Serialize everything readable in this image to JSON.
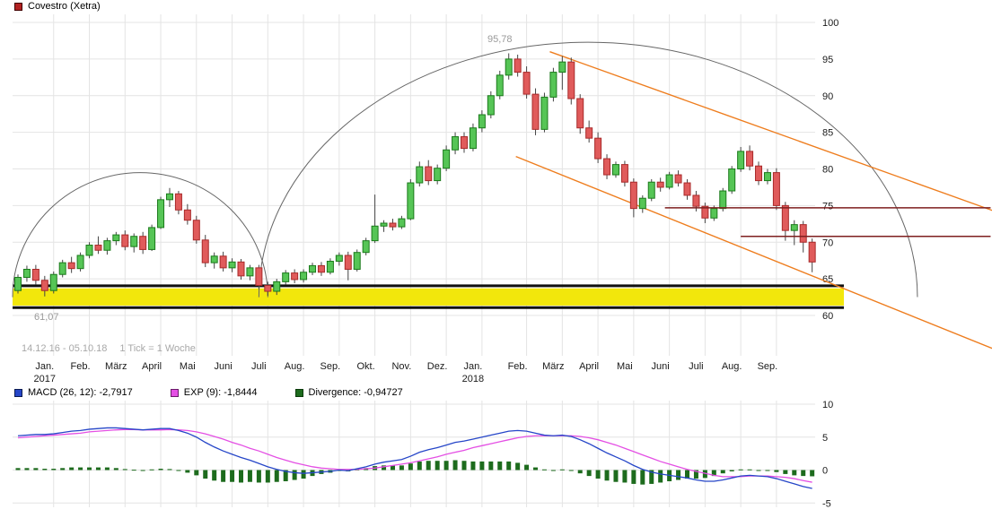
{
  "title": "Covestro (Xetra)",
  "chart_data": [
    {
      "type": "candlestick",
      "title": "Covestro (Xetra)",
      "x_unit": "week",
      "date_range_label": "14.12.16 - 05.10.18",
      "tick_label": "1 Tick = 1 Woche",
      "ylim": [
        54.5,
        101
      ],
      "y_ticks": [
        100,
        95,
        90,
        85,
        80,
        75,
        70,
        65,
        60
      ],
      "months": [
        {
          "label": "Jan.",
          "year": "2017",
          "week": 4
        },
        {
          "label": "Feb.",
          "week": 8
        },
        {
          "label": "März",
          "week": 12
        },
        {
          "label": "April",
          "week": 16
        },
        {
          "label": "Mai",
          "week": 20
        },
        {
          "label": "Juni",
          "week": 24
        },
        {
          "label": "Juli",
          "week": 28
        },
        {
          "label": "Aug.",
          "week": 32
        },
        {
          "label": "Sep.",
          "week": 36
        },
        {
          "label": "Okt.",
          "week": 40
        },
        {
          "label": "Nov.",
          "week": 44
        },
        {
          "label": "Dez.",
          "week": 48
        },
        {
          "label": "Jan.",
          "year": "2018",
          "week": 52
        },
        {
          "label": "Feb.",
          "week": 57
        },
        {
          "label": "März",
          "week": 61
        },
        {
          "label": "April",
          "week": 65
        },
        {
          "label": "Mai",
          "week": 69
        },
        {
          "label": "Juni",
          "week": 73
        },
        {
          "label": "Juli",
          "week": 77
        },
        {
          "label": "Aug.",
          "week": 81
        },
        {
          "label": "Sep.",
          "week": 85
        }
      ],
      "peak": {
        "week": 55,
        "price": 95.78,
        "label": "95,78"
      },
      "support_zone": {
        "band_top": 63.7,
        "band_bottom": 61.35,
        "line_top": 64.05,
        "line_bottom": 61.07,
        "label": "61,07"
      },
      "resistance_lines": [
        {
          "price": 74.7,
          "from_week": 72.5,
          "to_week": 109
        },
        {
          "price": 70.8,
          "from_week": 81,
          "to_week": 109
        }
      ],
      "round_arcs": [
        {
          "from_week": -0.6,
          "to_week": 28,
          "base_price": 62.5,
          "peak_price": 79.5
        },
        {
          "from_week": 27,
          "to_week": 100.8,
          "base_price": 62.5,
          "peak_price": 97.3
        }
      ],
      "trend_lines": [
        {
          "from_week": 59.6,
          "from_price": 96.0,
          "to_week": 109.5,
          "to_price": 74.2
        },
        {
          "from_week": 55.8,
          "from_price": 81.7,
          "to_week": 109.8,
          "to_price": 55.2
        }
      ],
      "candles_ohlc": [
        [
          63.4,
          65.6,
          63.0,
          65.2
        ],
        [
          65.2,
          66.8,
          64.6,
          66.3
        ],
        [
          66.3,
          66.9,
          64.2,
          64.8
        ],
        [
          64.8,
          65.4,
          62.6,
          63.4
        ],
        [
          63.4,
          66.0,
          63.0,
          65.6
        ],
        [
          65.6,
          67.6,
          65.2,
          67.2
        ],
        [
          67.2,
          68.0,
          65.8,
          66.4
        ],
        [
          66.4,
          68.6,
          66.0,
          68.2
        ],
        [
          68.2,
          70.0,
          67.8,
          69.6
        ],
        [
          69.6,
          70.8,
          68.4,
          68.9
        ],
        [
          68.9,
          70.6,
          68.3,
          70.2
        ],
        [
          70.2,
          71.4,
          69.6,
          71.0
        ],
        [
          71.0,
          71.6,
          68.9,
          69.4
        ],
        [
          69.4,
          71.2,
          68.6,
          70.8
        ],
        [
          70.8,
          71.4,
          68.4,
          69.0
        ],
        [
          69.0,
          72.4,
          68.8,
          72.0
        ],
        [
          72.0,
          76.2,
          71.8,
          75.8
        ],
        [
          75.8,
          77.4,
          74.8,
          76.6
        ],
        [
          76.6,
          77.0,
          73.8,
          74.4
        ],
        [
          74.4,
          75.2,
          72.4,
          73.0
        ],
        [
          73.0,
          73.6,
          69.8,
          70.3
        ],
        [
          70.3,
          71.0,
          66.6,
          67.2
        ],
        [
          67.2,
          68.6,
          66.4,
          68.1
        ],
        [
          68.1,
          68.7,
          66.0,
          66.5
        ],
        [
          66.5,
          67.8,
          65.9,
          67.3
        ],
        [
          67.3,
          67.7,
          64.9,
          65.4
        ],
        [
          65.4,
          66.9,
          64.8,
          66.5
        ],
        [
          66.5,
          66.9,
          63.6,
          64.1
        ],
        [
          64.1,
          64.6,
          62.7,
          63.3
        ],
        [
          63.3,
          65.0,
          62.8,
          64.6
        ],
        [
          64.6,
          66.2,
          64.2,
          65.8
        ],
        [
          65.8,
          66.3,
          64.4,
          64.9
        ],
        [
          64.9,
          66.3,
          64.5,
          65.9
        ],
        [
          65.9,
          67.2,
          65.5,
          66.8
        ],
        [
          66.8,
          67.3,
          65.4,
          65.9
        ],
        [
          65.9,
          67.8,
          65.6,
          67.4
        ],
        [
          67.4,
          68.6,
          66.8,
          68.2
        ],
        [
          68.2,
          68.7,
          64.8,
          66.3
        ],
        [
          66.3,
          69.0,
          66.0,
          68.6
        ],
        [
          68.6,
          70.6,
          68.2,
          70.2
        ],
        [
          70.2,
          76.5,
          69.9,
          72.2
        ],
        [
          72.2,
          73.0,
          71.4,
          72.6
        ],
        [
          72.6,
          73.2,
          71.6,
          72.1
        ],
        [
          72.1,
          73.6,
          71.8,
          73.2
        ],
        [
          73.2,
          78.6,
          73.0,
          78.1
        ],
        [
          78.1,
          81.0,
          77.6,
          80.3
        ],
        [
          80.3,
          81.2,
          77.8,
          78.4
        ],
        [
          78.4,
          80.6,
          77.9,
          80.1
        ],
        [
          80.1,
          83.2,
          79.7,
          82.6
        ],
        [
          82.6,
          85.0,
          82.0,
          84.4
        ],
        [
          84.4,
          85.0,
          82.2,
          82.8
        ],
        [
          82.8,
          86.2,
          82.4,
          85.6
        ],
        [
          85.6,
          88.0,
          85.0,
          87.4
        ],
        [
          87.4,
          90.6,
          86.9,
          90.0
        ],
        [
          90.0,
          93.4,
          89.5,
          92.8
        ],
        [
          92.8,
          95.78,
          92.2,
          95.0
        ],
        [
          95.0,
          95.6,
          92.6,
          93.2
        ],
        [
          93.2,
          94.0,
          89.6,
          90.2
        ],
        [
          90.2,
          91.0,
          84.6,
          85.4
        ],
        [
          85.4,
          90.4,
          85.0,
          89.8
        ],
        [
          89.8,
          93.8,
          89.2,
          93.2
        ],
        [
          93.2,
          95.4,
          90.8,
          94.6
        ],
        [
          94.6,
          95.2,
          88.8,
          89.6
        ],
        [
          89.6,
          90.2,
          84.8,
          85.6
        ],
        [
          85.6,
          86.6,
          83.6,
          84.2
        ],
        [
          84.2,
          85.0,
          80.8,
          81.4
        ],
        [
          81.4,
          82.0,
          78.6,
          79.2
        ],
        [
          79.2,
          81.0,
          78.8,
          80.6
        ],
        [
          80.6,
          81.1,
          77.6,
          78.2
        ],
        [
          78.2,
          78.7,
          73.4,
          74.6
        ],
        [
          74.6,
          76.4,
          74.0,
          76.0
        ],
        [
          76.0,
          78.6,
          75.6,
          78.2
        ],
        [
          78.2,
          78.8,
          76.9,
          77.5
        ],
        [
          77.5,
          79.6,
          77.2,
          79.2
        ],
        [
          79.2,
          79.8,
          77.6,
          78.1
        ],
        [
          78.1,
          78.6,
          75.8,
          76.4
        ],
        [
          76.4,
          77.0,
          74.2,
          74.9
        ],
        [
          74.9,
          75.4,
          72.6,
          73.3
        ],
        [
          73.3,
          75.0,
          72.9,
          74.6
        ],
        [
          74.6,
          77.4,
          74.2,
          77.0
        ],
        [
          77.0,
          80.4,
          76.6,
          80.0
        ],
        [
          80.0,
          83.0,
          79.6,
          82.4
        ],
        [
          82.4,
          83.2,
          79.8,
          80.4
        ],
        [
          80.4,
          81.0,
          77.8,
          78.4
        ],
        [
          78.4,
          80.0,
          77.9,
          79.5
        ],
        [
          79.5,
          80.1,
          74.4,
          75.0
        ],
        [
          75.0,
          75.5,
          70.2,
          71.6
        ],
        [
          71.6,
          73.0,
          69.6,
          72.4
        ],
        [
          72.4,
          72.9,
          68.6,
          70.0
        ],
        [
          70.0,
          70.5,
          65.9,
          67.3
        ]
      ]
    },
    {
      "type": "macd",
      "y_ticks": [
        10,
        5,
        0,
        -5
      ],
      "ylim": [
        -6,
        10.5
      ],
      "legend": {
        "macd": "MACD (26, 12): -2,7917",
        "exp": "EXP (9): -1,8444",
        "divergence": "Divergence: -0,94727"
      },
      "macd_current": -2.7917,
      "exp_current": -1.8444,
      "divergence_current": -0.94727,
      "macd_values": [
        5.2,
        5.3,
        5.4,
        5.4,
        5.5,
        5.7,
        5.9,
        6.0,
        6.2,
        6.3,
        6.4,
        6.4,
        6.3,
        6.2,
        6.1,
        6.2,
        6.3,
        6.3,
        6.0,
        5.6,
        5.0,
        4.2,
        3.5,
        2.9,
        2.4,
        1.9,
        1.5,
        1.0,
        0.5,
        0.1,
        -0.2,
        -0.4,
        -0.5,
        -0.4,
        -0.3,
        -0.2,
        0.0,
        -0.1,
        0.2,
        0.5,
        0.9,
        1.2,
        1.4,
        1.6,
        2.1,
        2.7,
        3.1,
        3.4,
        3.8,
        4.2,
        4.4,
        4.7,
        5.0,
        5.3,
        5.6,
        5.9,
        6.0,
        5.9,
        5.6,
        5.3,
        5.2,
        5.3,
        5.1,
        4.6,
        4.0,
        3.3,
        2.6,
        2.0,
        1.4,
        0.7,
        0.1,
        -0.3,
        -0.6,
        -0.8,
        -1.0,
        -1.2,
        -1.5,
        -1.7,
        -1.7,
        -1.5,
        -1.2,
        -0.9,
        -0.8,
        -0.9,
        -1.0,
        -1.3,
        -1.7,
        -2.1,
        -2.5,
        -2.7917
      ],
      "exp_values": [
        4.9,
        5.0,
        5.1,
        5.2,
        5.3,
        5.4,
        5.5,
        5.6,
        5.8,
        5.9,
        6.0,
        6.1,
        6.15,
        6.15,
        6.1,
        6.1,
        6.1,
        6.15,
        6.1,
        6.0,
        5.8,
        5.5,
        5.1,
        4.7,
        4.2,
        3.8,
        3.3,
        2.9,
        2.4,
        1.9,
        1.5,
        1.1,
        0.8,
        0.5,
        0.3,
        0.2,
        0.1,
        0.1,
        0.1,
        0.2,
        0.3,
        0.5,
        0.7,
        0.9,
        1.1,
        1.4,
        1.7,
        2.0,
        2.4,
        2.7,
        3.0,
        3.4,
        3.7,
        4.0,
        4.3,
        4.6,
        4.9,
        5.1,
        5.2,
        5.2,
        5.2,
        5.2,
        5.2,
        5.1,
        4.9,
        4.6,
        4.2,
        3.8,
        3.3,
        2.8,
        2.3,
        1.8,
        1.3,
        0.9,
        0.5,
        0.1,
        -0.2,
        -0.5,
        -0.8,
        -1.0,
        -1.0,
        -1.0,
        -0.9,
        -0.9,
        -0.9,
        -1.0,
        -1.1,
        -1.3,
        -1.6,
        -1.8444
      ]
    }
  ],
  "colors": {
    "candle_up": "#56c556",
    "candle_up_border": "#1b7a1b",
    "candle_down": "#e05b5b",
    "candle_down_border": "#a82a2a",
    "wick": "#444444",
    "grid": "#e4e4e4",
    "support_band": "#f2e70c",
    "support_line": "#101010",
    "resistance_line": "#7e1f1f",
    "arc": "#666666",
    "trend_line": "#ee7d1e",
    "macd_line": "#2646c8",
    "exp_line": "#e44fe4",
    "divergence_bar": "#1d6b1d",
    "axis_text": "#1a1a1a",
    "legend_swatch_main": "#b22222"
  }
}
